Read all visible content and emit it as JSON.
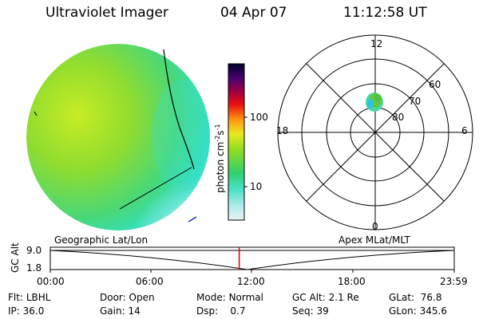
{
  "header": {
    "instrument": "Ultraviolet Imager",
    "date": "04 Apr 07",
    "time": "11:12:58 UT"
  },
  "colorbar": {
    "unit_label": "photon cm",
    "unit_sup1": "-2",
    "unit_s": "s",
    "unit_sup2": "-1",
    "tick_100": "100",
    "tick_10": "10"
  },
  "polar_plot": {
    "mlt_labels": {
      "top": "12",
      "bottom": "0",
      "left": "18",
      "right": "6"
    },
    "lat_labels": {
      "outer": "60",
      "middle": "70",
      "inner": "80"
    }
  },
  "timeline": {
    "axis_label": "GC Alt",
    "y_top": "9.0",
    "y_bottom": "1.8",
    "left_caption": "Geographic Lat/Lon",
    "right_caption": "Apex MLat/MLT",
    "x_ticks": [
      "00:00",
      "06:00",
      "12:00",
      "18:00",
      "23:59"
    ],
    "marker_time": "11:12:58",
    "marker_color": "#e00000"
  },
  "info": {
    "row1": {
      "flt_label": "Flt:",
      "flt_value": "LBHL",
      "door_label": "Door:",
      "door_value": "Open",
      "mode_label": "Mode:",
      "mode_value": "Normal",
      "gcalt_label": "GC Alt:",
      "gcalt_value": "2.1 Re",
      "glat_label": "GLat:",
      "glat_value": "76.8"
    },
    "row2": {
      "ip_label": "IP:",
      "ip_value": "36.0",
      "gain_label": "Gain:",
      "gain_value": "14",
      "dsp_label": "Dsp:",
      "dsp_value": "0.7",
      "seq_label": "Seq:",
      "seq_value": "39",
      "glon_label": "GLon:",
      "glon_value": "345.6"
    }
  }
}
